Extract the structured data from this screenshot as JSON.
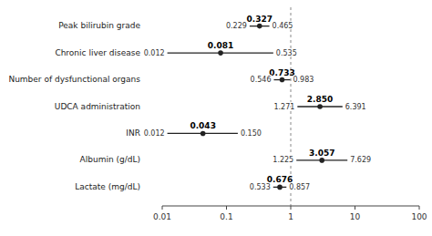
{
  "chart_data": {
    "type": "forest",
    "categories": [
      "Peak bilirubin grade",
      "Chronic liver disease",
      "Number of dysfunctional organs",
      "UDCA administration",
      "INR",
      "Albumin (g/dL)",
      "Lactate (mg/dL)"
    ],
    "values": [
      0.327,
      0.081,
      0.733,
      2.85,
      0.043,
      3.057,
      0.676
    ],
    "value_labels": [
      "0.327",
      "0.081",
      "0.733",
      "2.850",
      "0.043",
      "3.057",
      "0.676"
    ],
    "ci_low": [
      0.229,
      0.012,
      0.546,
      1.271,
      0.012,
      1.225,
      0.533
    ],
    "ci_low_labels": [
      "0.229",
      "0.012",
      "0.546",
      "1.271",
      "0.012",
      "1.225",
      "0.533"
    ],
    "ci_high": [
      0.465,
      0.535,
      0.983,
      6.391,
      0.15,
      7.629,
      0.857
    ],
    "ci_high_labels": [
      "0.465",
      "0.535",
      "0.983",
      "6.391",
      "0.150",
      "7.629",
      "0.857"
    ],
    "reference_line": 1,
    "log": "x",
    "xlim": [
      0.01,
      100
    ],
    "xticks": [
      0.01,
      0.1,
      1,
      10,
      100
    ],
    "color": "#222222",
    "data_labels": true,
    "grid": false
  }
}
